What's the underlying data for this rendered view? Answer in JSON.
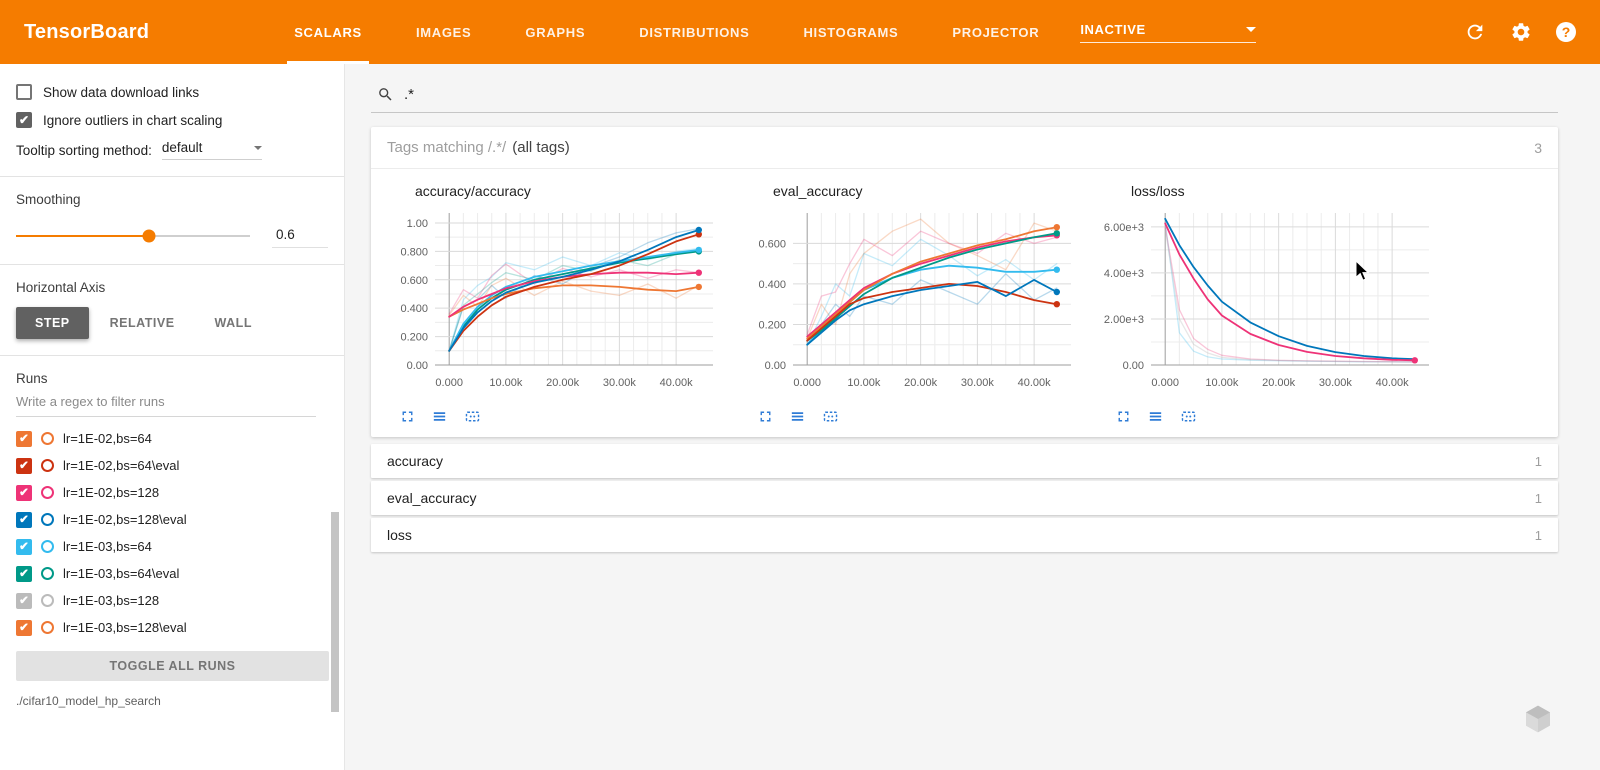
{
  "header": {
    "title": "TensorBoard",
    "tabs": [
      {
        "label": "SCALARS",
        "active": true
      },
      {
        "label": "IMAGES",
        "active": false
      },
      {
        "label": "GRAPHS",
        "active": false
      },
      {
        "label": "DISTRIBUTIONS",
        "active": false
      },
      {
        "label": "HISTOGRAMS",
        "active": false
      },
      {
        "label": "PROJECTOR",
        "active": false
      }
    ],
    "status": "INACTIVE",
    "icons": [
      "refresh-icon",
      "settings-gear-icon",
      "help-icon"
    ],
    "brand_color": "#f57c00"
  },
  "sidebar": {
    "checkboxes": [
      {
        "label": "Show data download links",
        "checked": false
      },
      {
        "label": "Ignore outliers in chart scaling",
        "checked": true
      }
    ],
    "tooltip_sorting": {
      "label": "Tooltip sorting method:",
      "value": "default"
    },
    "smoothing": {
      "label": "Smoothing",
      "value": "0.6",
      "percent": 57
    },
    "horizontal_axis": {
      "label": "Horizontal Axis",
      "options": [
        {
          "label": "STEP",
          "active": true
        },
        {
          "label": "RELATIVE",
          "active": false
        },
        {
          "label": "WALL",
          "active": false
        }
      ]
    },
    "runs": {
      "label": "Runs",
      "filter_placeholder": "Write a regex to filter runs",
      "items": [
        {
          "label": "lr=1E-02,bs=64",
          "color": "#ee7733",
          "checked": true
        },
        {
          "label": "lr=1E-02,bs=64\\eval",
          "color": "#cc3311",
          "checked": true
        },
        {
          "label": "lr=1E-02,bs=128",
          "color": "#ee3377",
          "checked": true
        },
        {
          "label": "lr=1E-02,bs=128\\eval",
          "color": "#0077bb",
          "checked": true
        },
        {
          "label": "lr=1E-03,bs=64",
          "color": "#33bbee",
          "checked": true
        },
        {
          "label": "lr=1E-03,bs=64\\eval",
          "color": "#009988",
          "checked": true
        },
        {
          "label": "lr=1E-03,bs=128",
          "color": "#bbbbbb",
          "checked": true
        },
        {
          "label": "lr=1E-03,bs=128\\eval",
          "color": "#ee7733",
          "checked": true
        }
      ],
      "toggle_all_label": "TOGGLE ALL RUNS",
      "log_dir": "./cifar10_model_hp_search"
    }
  },
  "main": {
    "search": {
      "value": ".*"
    },
    "tags_card": {
      "title_prefix": "Tags matching /.*/",
      "title_suffix": "(all tags)",
      "count": "3"
    },
    "chart_toolbar_icons": [
      "fullscreen-icon",
      "data-table-icon",
      "fit-domain-icon"
    ],
    "collapsed_sections": [
      {
        "title": "accuracy",
        "count": "1"
      },
      {
        "title": "eval_accuracy",
        "count": "1"
      },
      {
        "title": "loss",
        "count": "1"
      }
    ]
  },
  "chart_data": [
    {
      "type": "line",
      "title": "accuracy/accuracy",
      "xlim": [
        -2500,
        46500
      ],
      "ylim": [
        0,
        1.07
      ],
      "x": [
        0,
        2500,
        5000,
        7500,
        10000,
        15000,
        20000,
        25000,
        30000,
        35000,
        40000,
        44000
      ],
      "xticks": [
        {
          "v": 0,
          "label": "0.000"
        },
        {
          "v": 10000,
          "label": "10.00k"
        },
        {
          "v": 20000,
          "label": "20.00k"
        },
        {
          "v": 30000,
          "label": "30.00k"
        },
        {
          "v": 40000,
          "label": "40.00k"
        }
      ],
      "yticks": [
        {
          "v": 0,
          "label": "0.00"
        },
        {
          "v": 0.2,
          "label": "0.200"
        },
        {
          "v": 0.4,
          "label": "0.400"
        },
        {
          "v": 0.6,
          "label": "0.600"
        },
        {
          "v": 0.8,
          "label": "0.800"
        },
        {
          "v": 1,
          "label": "1.00"
        }
      ],
      "series": [
        {
          "name": "lr=1E-03,bs=64 (raw)",
          "color": "#33bbee",
          "opacity": 0.28,
          "dot": false,
          "values": [
            0.1,
            0.46,
            0.56,
            0.62,
            0.72,
            0.67,
            0.76,
            0.7,
            0.79,
            0.74,
            0.8,
            0.82
          ]
        },
        {
          "name": "lr=1E-02,bs=128 (raw)",
          "color": "#ee3377",
          "opacity": 0.28,
          "dot": false,
          "values": [
            0.36,
            0.53,
            0.47,
            0.63,
            0.71,
            0.57,
            0.68,
            0.62,
            0.67,
            0.61,
            0.67,
            0.65
          ]
        },
        {
          "name": "lr=1E-02,bs=64 (raw)",
          "color": "#ee7733",
          "opacity": 0.28,
          "dot": false,
          "values": [
            0.35,
            0.49,
            0.41,
            0.56,
            0.61,
            0.49,
            0.59,
            0.52,
            0.49,
            0.57,
            0.47,
            0.56
          ]
        },
        {
          "name": "lr=1E-02,bs=128\\eval (raw)",
          "color": "#0077bb",
          "opacity": 0.28,
          "dot": false,
          "values": [
            0.1,
            0.41,
            0.46,
            0.56,
            0.47,
            0.63,
            0.57,
            0.69,
            0.76,
            0.86,
            0.93,
            0.96
          ]
        },
        {
          "name": "lr=1E-03,bs=64\\eval (raw)",
          "color": "#009988",
          "opacity": 0.28,
          "dot": false,
          "values": [
            0.1,
            0.42,
            0.5,
            0.58,
            0.65,
            0.6,
            0.7,
            0.66,
            0.74,
            0.7,
            0.78,
            0.8
          ]
        },
        {
          "name": "lr=1E-03,bs=64\\eval",
          "color": "#009988",
          "opacity": 1,
          "dot": true,
          "values": [
            0.1,
            0.27,
            0.39,
            0.47,
            0.53,
            0.6,
            0.64,
            0.68,
            0.72,
            0.75,
            0.78,
            0.8
          ]
        },
        {
          "name": "lr=1E-03,bs=64",
          "color": "#33bbee",
          "opacity": 1,
          "dot": true,
          "values": [
            0.1,
            0.29,
            0.41,
            0.49,
            0.55,
            0.62,
            0.66,
            0.7,
            0.73,
            0.76,
            0.79,
            0.81
          ]
        },
        {
          "name": "lr=1E-02,bs=64",
          "color": "#ee7733",
          "opacity": 1,
          "dot": true,
          "values": [
            0.34,
            0.39,
            0.43,
            0.47,
            0.5,
            0.54,
            0.56,
            0.56,
            0.55,
            0.53,
            0.52,
            0.55
          ]
        },
        {
          "name": "lr=1E-02,bs=128",
          "color": "#ee3377",
          "opacity": 1,
          "dot": true,
          "values": [
            0.34,
            0.41,
            0.46,
            0.5,
            0.54,
            0.59,
            0.62,
            0.64,
            0.65,
            0.65,
            0.64,
            0.65
          ]
        },
        {
          "name": "lr=1E-02,bs=64\\eval",
          "color": "#cc3311",
          "opacity": 1,
          "dot": true,
          "values": [
            0.1,
            0.24,
            0.34,
            0.42,
            0.48,
            0.55,
            0.6,
            0.64,
            0.7,
            0.78,
            0.87,
            0.92
          ]
        },
        {
          "name": "lr=1E-02,bs=128\\eval",
          "color": "#0077bb",
          "opacity": 1,
          "dot": true,
          "values": [
            0.1,
            0.26,
            0.37,
            0.45,
            0.51,
            0.58,
            0.62,
            0.67,
            0.73,
            0.81,
            0.9,
            0.95
          ]
        }
      ]
    },
    {
      "type": "line",
      "title": "eval_accuracy",
      "xlim": [
        -2500,
        46500
      ],
      "ylim": [
        0,
        0.75
      ],
      "x": [
        0,
        2500,
        5000,
        7500,
        10000,
        15000,
        20000,
        25000,
        30000,
        35000,
        40000,
        44000
      ],
      "xticks": [
        {
          "v": 0,
          "label": "0.000"
        },
        {
          "v": 10000,
          "label": "10.00k"
        },
        {
          "v": 20000,
          "label": "20.00k"
        },
        {
          "v": 30000,
          "label": "30.00k"
        },
        {
          "v": 40000,
          "label": "40.00k"
        }
      ],
      "yticks": [
        {
          "v": 0,
          "label": "0.00"
        },
        {
          "v": 0.2,
          "label": "0.200"
        },
        {
          "v": 0.4,
          "label": "0.400"
        },
        {
          "v": 0.6,
          "label": "0.600"
        }
      ],
      "series": [
        {
          "name": "lr=1E-03,bs=128\\eval (raw)",
          "color": "#ee7733",
          "opacity": 0.28,
          "dot": false,
          "values": [
            0.13,
            0.3,
            0.2,
            0.45,
            0.55,
            0.66,
            0.72,
            0.6,
            0.54,
            0.47,
            0.7,
            0.66
          ]
        },
        {
          "name": "lr=1E-02,bs=128 (raw)",
          "color": "#ee3377",
          "opacity": 0.28,
          "dot": false,
          "values": [
            0.15,
            0.34,
            0.36,
            0.5,
            0.62,
            0.54,
            0.66,
            0.6,
            0.55,
            0.65,
            0.6,
            0.63
          ]
        },
        {
          "name": "lr=1E-03,bs=64 (raw)",
          "color": "#33bbee",
          "opacity": 0.28,
          "dot": false,
          "values": [
            0.1,
            0.24,
            0.4,
            0.34,
            0.55,
            0.49,
            0.62,
            0.54,
            0.44,
            0.52,
            0.42,
            0.5
          ]
        },
        {
          "name": "lr=1E-02,bs=128\\eval (raw)",
          "color": "#0077bb",
          "opacity": 0.28,
          "dot": false,
          "values": [
            0.1,
            0.2,
            0.3,
            0.24,
            0.34,
            0.3,
            0.42,
            0.36,
            0.3,
            0.45,
            0.32,
            0.38
          ]
        },
        {
          "name": "lr=1E-03,bs=64",
          "color": "#33bbee",
          "opacity": 1,
          "dot": true,
          "values": [
            0.1,
            0.17,
            0.25,
            0.31,
            0.37,
            0.43,
            0.47,
            0.49,
            0.48,
            0.46,
            0.46,
            0.47
          ]
        },
        {
          "name": "lr=1E-02,bs=128",
          "color": "#ee3377",
          "opacity": 1,
          "dot": true,
          "values": [
            0.14,
            0.2,
            0.26,
            0.32,
            0.38,
            0.45,
            0.5,
            0.54,
            0.58,
            0.61,
            0.63,
            0.64
          ]
        },
        {
          "name": "lr=1E-03,bs=64\\eval",
          "color": "#009988",
          "opacity": 1,
          "dot": true,
          "values": [
            0.12,
            0.17,
            0.23,
            0.29,
            0.35,
            0.43,
            0.48,
            0.53,
            0.57,
            0.6,
            0.63,
            0.65
          ]
        },
        {
          "name": "lr=1E-03,bs=128\\eval",
          "color": "#ee7733",
          "opacity": 1,
          "dot": true,
          "values": [
            0.13,
            0.19,
            0.25,
            0.31,
            0.37,
            0.45,
            0.51,
            0.55,
            0.59,
            0.62,
            0.66,
            0.68
          ]
        },
        {
          "name": "lr=1E-02,bs=64\\eval",
          "color": "#cc3311",
          "opacity": 1,
          "dot": true,
          "values": [
            0.12,
            0.18,
            0.24,
            0.3,
            0.33,
            0.36,
            0.38,
            0.4,
            0.39,
            0.36,
            0.32,
            0.3
          ]
        },
        {
          "name": "lr=1E-02,bs=128\\eval",
          "color": "#0077bb",
          "opacity": 1,
          "dot": true,
          "values": [
            0.1,
            0.16,
            0.22,
            0.27,
            0.3,
            0.34,
            0.37,
            0.39,
            0.41,
            0.34,
            0.42,
            0.36
          ]
        }
      ]
    },
    {
      "type": "line",
      "title": "loss/loss",
      "xlim": [
        -2500,
        46500
      ],
      "ylim": [
        0,
        6600
      ],
      "x": [
        0,
        2500,
        5000,
        7500,
        10000,
        15000,
        20000,
        25000,
        30000,
        35000,
        40000,
        44000
      ],
      "xticks": [
        {
          "v": 0,
          "label": "0.000"
        },
        {
          "v": 10000,
          "label": "10.00k"
        },
        {
          "v": 20000,
          "label": "20.00k"
        },
        {
          "v": 30000,
          "label": "30.00k"
        },
        {
          "v": 40000,
          "label": "40.00k"
        }
      ],
      "yticks": [
        {
          "v": 0,
          "label": "0.00"
        },
        {
          "v": 2000,
          "label": "2.00e+3"
        },
        {
          "v": 4000,
          "label": "4.00e+3"
        },
        {
          "v": 6000,
          "label": "6.00e+3"
        }
      ],
      "series": [
        {
          "name": "lr=1E-03,bs=64 (raw)",
          "color": "#33bbee",
          "opacity": 0.28,
          "dot": false,
          "values": [
            6200,
            1400,
            600,
            350,
            260,
            210,
            185,
            165,
            150,
            140,
            135,
            130
          ]
        },
        {
          "name": "lr=1E-02,bs=128 (raw)",
          "color": "#ee3377",
          "opacity": 0.28,
          "dot": false,
          "values": [
            6000,
            2400,
            1150,
            680,
            420,
            260,
            205,
            180,
            165,
            150,
            142,
            138
          ]
        },
        {
          "name": "lr=1E-03,bs=128 (raw)",
          "color": "#bbbbbb",
          "opacity": 0.35,
          "dot": false,
          "values": [
            5900,
            2000,
            900,
            520,
            330,
            230,
            195,
            175,
            158,
            147,
            138,
            132
          ]
        },
        {
          "name": "lr=1E-02,bs=128\\eval",
          "color": "#0077bb",
          "opacity": 1,
          "dot": false,
          "values": [
            6350,
            5200,
            4250,
            3450,
            2750,
            1850,
            1250,
            830,
            560,
            390,
            290,
            255
          ]
        },
        {
          "name": "lr=1E-02,bs=128",
          "color": "#ee3377",
          "opacity": 1,
          "dot": true,
          "values": [
            6150,
            4800,
            3750,
            2850,
            2150,
            1350,
            870,
            570,
            390,
            290,
            225,
            205
          ]
        }
      ]
    }
  ]
}
